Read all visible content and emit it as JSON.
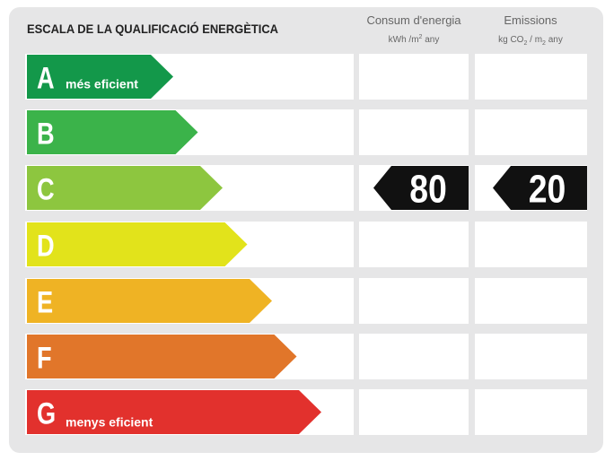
{
  "header": {
    "title": "ESCALA DE LA QUALIFICACIÓ ENERGÈTICA",
    "columns": [
      {
        "title": "Consum d'energia",
        "unit": [
          "kWh /m",
          "2",
          " any"
        ]
      },
      {
        "title": "Emissions",
        "unit": [
          "kg CO",
          "2",
          " / m",
          "2",
          " any"
        ]
      }
    ]
  },
  "rows": [
    {
      "letter": "A",
      "note": "més eficient",
      "color": "#13984a"
    },
    {
      "letter": "B",
      "color": "#3bb34a"
    },
    {
      "letter": "C",
      "color": "#8dc63f",
      "consumption": 80,
      "emissions": 20
    },
    {
      "letter": "D",
      "color": "#e2e31b"
    },
    {
      "letter": "E",
      "color": "#efb324"
    },
    {
      "letter": "F",
      "color": "#e1762a"
    },
    {
      "letter": "G",
      "note": "menys eficient",
      "color": "#e2312d"
    }
  ]
}
